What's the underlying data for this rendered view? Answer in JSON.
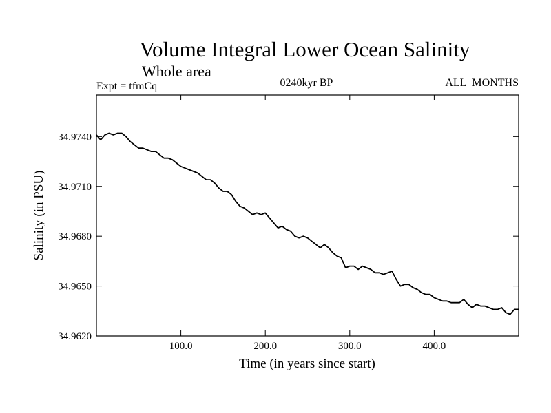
{
  "chart_data": {
    "type": "line",
    "title": "Volume Integral Lower Ocean Salinity",
    "subtitle": "Whole area",
    "annotations": {
      "experiment": "Expt = tfmCq",
      "period": "0240kyr BP",
      "months": "ALL_MONTHS"
    },
    "xlabel": "Time (in years since start)",
    "ylabel": "Salinity (in PSU)",
    "xlim": [
      0,
      500
    ],
    "ylim": [
      34.962,
      34.9765
    ],
    "x_ticks": [
      100,
      200,
      300,
      400
    ],
    "x_tick_labels": [
      "100.0",
      "200.0",
      "300.0",
      "400.0"
    ],
    "y_ticks": [
      34.962,
      34.965,
      34.968,
      34.971,
      34.974
    ],
    "y_tick_labels": [
      "34.9620",
      "34.9650",
      "34.9680",
      "34.9710",
      "34.9740"
    ],
    "grid": false,
    "legend": "none",
    "line_color": "#000000",
    "series": [
      {
        "x": [
          0,
          5,
          10,
          15,
          20,
          25,
          30,
          35,
          40,
          45,
          50,
          55,
          60,
          65,
          70,
          75,
          80,
          85,
          90,
          95,
          100,
          105,
          110,
          115,
          120,
          125,
          130,
          135,
          140,
          145,
          150,
          155,
          160,
          165,
          170,
          175,
          180,
          185,
          190,
          195,
          200,
          205,
          210,
          215,
          220,
          225,
          230,
          235,
          240,
          245,
          250,
          255,
          260,
          265,
          270,
          275,
          280,
          285,
          290,
          295,
          300,
          305,
          310,
          315,
          320,
          325,
          330,
          335,
          340,
          345,
          350,
          355,
          360,
          365,
          370,
          375,
          380,
          385,
          390,
          395,
          400,
          405,
          410,
          415,
          420,
          425,
          430,
          435,
          440,
          445,
          450,
          455,
          460,
          465,
          470,
          475,
          480,
          485,
          490,
          495,
          500
        ],
        "values": [
          34.9741,
          34.9738,
          34.9741,
          34.9742,
          34.9741,
          34.9742,
          34.9742,
          34.974,
          34.9737,
          34.9735,
          34.9733,
          34.9733,
          34.9732,
          34.9731,
          34.9731,
          34.9729,
          34.9727,
          34.9727,
          34.9726,
          34.9724,
          34.9722,
          34.9721,
          34.972,
          34.9719,
          34.9718,
          34.9716,
          34.9714,
          34.9714,
          34.9712,
          34.9709,
          34.9707,
          34.9707,
          34.9705,
          34.9701,
          34.9698,
          34.9697,
          34.9695,
          34.9693,
          34.9694,
          34.9693,
          34.9694,
          34.9691,
          34.9688,
          34.9685,
          34.9686,
          34.9684,
          34.9683,
          34.968,
          34.9679,
          34.968,
          34.9679,
          34.9677,
          34.9675,
          34.9673,
          34.9675,
          34.9673,
          34.967,
          34.9668,
          34.9667,
          34.9661,
          34.9662,
          34.9662,
          34.966,
          34.9662,
          34.9661,
          34.966,
          34.9658,
          34.9658,
          34.9657,
          34.9658,
          34.9659,
          34.9654,
          34.965,
          34.9651,
          34.9651,
          34.9649,
          34.9648,
          34.9646,
          34.9645,
          34.9645,
          34.9643,
          34.9642,
          34.9641,
          34.9641,
          34.964,
          34.964,
          34.964,
          34.9642,
          34.9639,
          34.9637,
          34.9639,
          34.9638,
          34.9638,
          34.9637,
          34.9636,
          34.9636,
          34.9637,
          34.9634,
          34.9633,
          34.9636,
          34.9636
        ]
      }
    ]
  }
}
